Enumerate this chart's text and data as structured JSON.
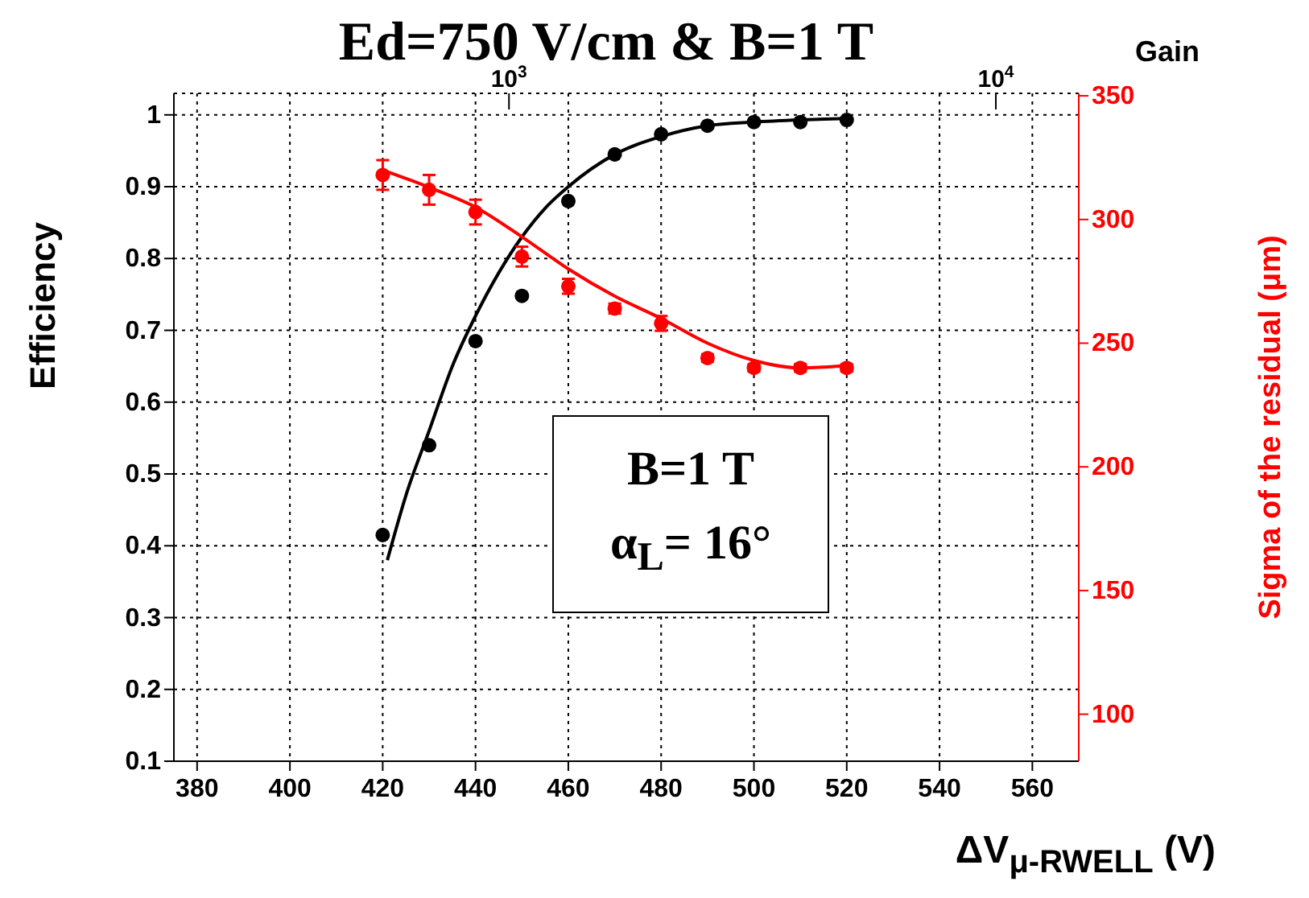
{
  "chart_data": {
    "type": "scatter",
    "title": "Ed=750 V/cm & B=1 T",
    "xlabel": "ΔV$_{μ-RWELL}$ (V)",
    "ylabel": "Efficiency",
    "y2label": "Sigma of the residual (μm)",
    "x2label": "Gain",
    "annotations": [
      "B=1 T",
      "α$_{L}$= 16°"
    ],
    "xlim": [
      375,
      570
    ],
    "xticks": [
      380,
      400,
      420,
      440,
      460,
      480,
      500,
      520,
      540,
      560
    ],
    "ylim": [
      0.1,
      1.03
    ],
    "yticks": [
      0.1,
      0.2,
      0.3,
      0.4,
      0.5,
      0.6,
      0.7,
      0.8,
      0.9,
      1
    ],
    "y2lim": [
      81,
      351
    ],
    "y2ticks": [
      100,
      150,
      200,
      250,
      300,
      350
    ],
    "x2lim": [
      205,
      14800
    ],
    "x2ticks": [
      {
        "value": 1000,
        "label": "10$^{3}$"
      },
      {
        "value": 10000,
        "label": "10$^{4}$"
      }
    ],
    "log": "x2",
    "grid": true,
    "line_style": "solid",
    "series": [
      {
        "type": "scatter",
        "marker": "circle",
        "color": "#000000",
        "x": [
          420,
          430,
          440,
          450,
          460,
          470,
          480,
          490,
          500,
          510,
          520
        ],
        "values": [
          0.415,
          0.54,
          0.685,
          0.748,
          0.88,
          0.945,
          0.973,
          0.985,
          0.99,
          0.99,
          0.993
        ]
      },
      {
        "type": "line",
        "marker": "none",
        "color": "#000000",
        "x": [
          421,
          425,
          430,
          435,
          440,
          445,
          450,
          455,
          460,
          470,
          480,
          490,
          500,
          510,
          520
        ],
        "values": [
          0.38,
          0.47,
          0.56,
          0.65,
          0.72,
          0.78,
          0.83,
          0.87,
          0.9,
          0.945,
          0.97,
          0.985,
          0.99,
          0.993,
          0.995
        ]
      },
      {
        "type": "scatter",
        "marker": "circle",
        "axis": "y2",
        "color": "#ff0000",
        "x": [
          420,
          430,
          440,
          450,
          460,
          470,
          480,
          490,
          500,
          510,
          520
        ],
        "values": [
          318,
          312,
          303,
          285,
          273,
          264,
          258,
          244,
          240,
          240,
          240
        ],
        "errors": [
          6,
          6,
          5,
          4,
          3,
          2,
          3,
          1.5,
          1.5,
          1.5,
          1.5
        ]
      },
      {
        "type": "line",
        "marker": "none",
        "axis": "y2",
        "color": "#ff0000",
        "x": [
          420,
          430,
          440,
          450,
          460,
          470,
          480,
          490,
          500,
          510,
          520
        ],
        "values": [
          320,
          313,
          305,
          293,
          280,
          269,
          260,
          250,
          243,
          240,
          241
        ]
      }
    ]
  }
}
